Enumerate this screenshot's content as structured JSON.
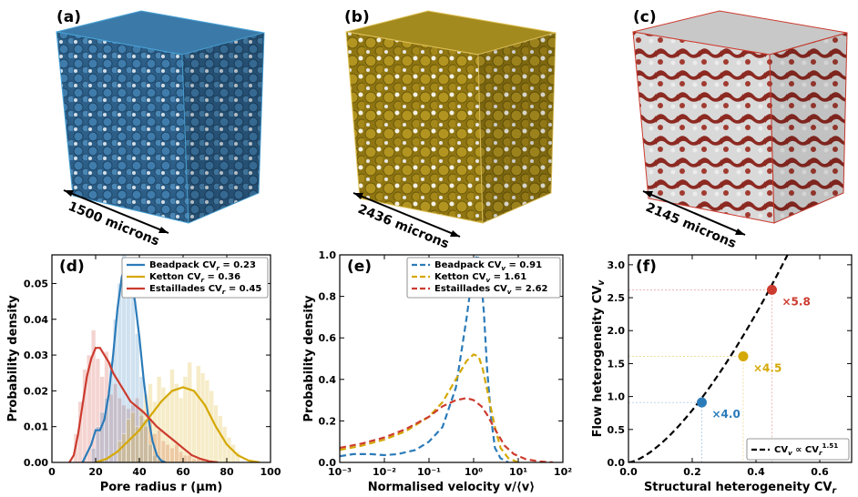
{
  "colors": {
    "blue": "#2b7bb9",
    "gold": "#d4a805",
    "red": "#cc3b2f",
    "tan": "#b08d1a"
  },
  "panels": {
    "a": {
      "letter": "(a)",
      "scale": "1500 microns"
    },
    "b": {
      "letter": "(b)",
      "scale": "2436 microns"
    },
    "c": {
      "letter": "(c)",
      "scale": "2145 microns"
    }
  },
  "chart_data": [
    {
      "id": "d",
      "letter": "(d)",
      "type": "line",
      "xlabel": "Pore radius  r  (μm)",
      "ylabel": "Probability density",
      "xlim": [
        0,
        100
      ],
      "ylim": [
        0,
        0.058
      ],
      "xticks": [
        0,
        20,
        40,
        60,
        80,
        100
      ],
      "yticks": [
        0.0,
        0.01,
        0.02,
        0.03,
        0.04,
        0.05
      ],
      "ytick_labels": [
        "0.00",
        "0.01",
        "0.02",
        "0.03",
        "0.04",
        "0.05"
      ],
      "series": [
        {
          "name": "Beadpack  CVr = 0.23",
          "color": "#2b7bb9",
          "x": [
            14,
            18,
            20,
            22,
            24,
            26,
            28,
            30,
            32,
            34,
            36,
            38,
            40,
            42,
            44,
            46,
            48,
            50,
            52
          ],
          "y": [
            0,
            0.005,
            0.009,
            0.009,
            0.012,
            0.019,
            0.03,
            0.043,
            0.052,
            0.055,
            0.052,
            0.045,
            0.035,
            0.023,
            0.013,
            0.006,
            0.002,
            0.0005,
            0
          ]
        },
        {
          "name": "Ketton  CVr = 0.36",
          "color": "#d4a805",
          "x": [
            20,
            25,
            30,
            35,
            40,
            45,
            50,
            55,
            60,
            65,
            70,
            75,
            80,
            85,
            90,
            95
          ],
          "y": [
            0,
            0.001,
            0.003,
            0.006,
            0.009,
            0.013,
            0.017,
            0.02,
            0.021,
            0.02,
            0.016,
            0.01,
            0.005,
            0.002,
            0.0005,
            0
          ]
        },
        {
          "name": "Estaillades  CVr = 0.45",
          "color": "#cc3b2f",
          "x": [
            8,
            10,
            12,
            14,
            16,
            18,
            20,
            22,
            24,
            26,
            28,
            30,
            32,
            34,
            36,
            38,
            40,
            42,
            45,
            48,
            52,
            56,
            60,
            64,
            68,
            72,
            76
          ],
          "y": [
            0.0,
            0.002,
            0.008,
            0.016,
            0.024,
            0.029,
            0.032,
            0.032,
            0.03,
            0.028,
            0.025,
            0.023,
            0.021,
            0.019,
            0.017,
            0.016,
            0.015,
            0.014,
            0.012,
            0.01,
            0.008,
            0.006,
            0.004,
            0.002,
            0.001,
            0.0003,
            0
          ]
        }
      ],
      "histograms": [
        {
          "color": "#cc3b2f",
          "start": 10,
          "width": 2,
          "values": [
            0.008,
            0.017,
            0.026,
            0.03,
            0.037,
            0.029,
            0.024,
            0.031,
            0.019,
            0.022,
            0.018,
            0.016,
            0.015,
            0.016,
            0.018,
            0.013,
            0.01,
            0.012,
            0.008,
            0.009,
            0.006,
            0.005,
            0.004,
            0.005,
            0.003,
            0.002,
            0.002,
            0.001,
            0.001,
            0.001
          ]
        },
        {
          "color": "#2b7bb9",
          "start": 18,
          "width": 2,
          "values": [
            0.004,
            0.01,
            0.014,
            0.018,
            0.028,
            0.04,
            0.05,
            0.058,
            0.054,
            0.048,
            0.036,
            0.024,
            0.012,
            0.005,
            0.002,
            0.001
          ]
        },
        {
          "color": "#d4a805",
          "start": 30,
          "width": 2,
          "values": [
            0.006,
            0.008,
            0.012,
            0.014,
            0.01,
            0.015,
            0.019,
            0.022,
            0.017,
            0.024,
            0.021,
            0.019,
            0.026,
            0.022,
            0.018,
            0.024,
            0.028,
            0.02,
            0.027,
            0.025,
            0.023,
            0.02,
            0.016,
            0.013,
            0.01,
            0.007,
            0.005,
            0.003
          ]
        }
      ]
    },
    {
      "id": "e",
      "letter": "(e)",
      "type": "line",
      "xlabel": "Normalised velocity  v/⟨v⟩",
      "ylabel": "Probability density",
      "xscale": "log",
      "xlim": [
        0.001,
        100
      ],
      "ylim": [
        0,
        1.0
      ],
      "xticks": [
        0.001,
        0.01,
        0.1,
        1,
        10,
        100
      ],
      "xtick_labels": [
        "10⁻³",
        "10⁻²",
        "10⁻¹",
        "10⁰",
        "10¹",
        "10²"
      ],
      "yticks": [
        0.0,
        0.2,
        0.4,
        0.6,
        0.8,
        1.0
      ],
      "ytick_labels": [
        "0.0",
        "0.2",
        "0.4",
        "0.6",
        "0.8",
        "1.0"
      ],
      "series": [
        {
          "name": "Beadpack  CVv = 0.91",
          "color": "#2b7bb9",
          "x": [
            0.001,
            0.002,
            0.005,
            0.01,
            0.02,
            0.05,
            0.1,
            0.2,
            0.4,
            0.7,
            1.0,
            1.2,
            1.4,
            1.7,
            2.0,
            2.5,
            3.0,
            4.0,
            6.0
          ],
          "y": [
            0.03,
            0.04,
            0.04,
            0.035,
            0.04,
            0.06,
            0.1,
            0.17,
            0.36,
            0.7,
            0.95,
            1.0,
            0.95,
            0.72,
            0.45,
            0.2,
            0.07,
            0.02,
            0
          ]
        },
        {
          "name": "Ketton  CVv = 1.61",
          "color": "#d4a805",
          "x": [
            0.001,
            0.003,
            0.01,
            0.03,
            0.1,
            0.2,
            0.4,
            0.7,
            1.0,
            1.3,
            1.6,
            2.0,
            3.0,
            4.0,
            6.0,
            10
          ],
          "y": [
            0.06,
            0.08,
            0.11,
            0.15,
            0.22,
            0.29,
            0.4,
            0.49,
            0.52,
            0.51,
            0.45,
            0.35,
            0.17,
            0.07,
            0.02,
            0
          ]
        },
        {
          "name": "Estaillades  CVv = 2.62",
          "color": "#cc3b2f",
          "x": [
            0.001,
            0.003,
            0.01,
            0.03,
            0.1,
            0.2,
            0.4,
            0.7,
            1.0,
            1.5,
            2.0,
            3.0,
            5.0,
            8.0,
            15,
            30,
            60
          ],
          "y": [
            0.07,
            0.09,
            0.12,
            0.16,
            0.22,
            0.27,
            0.3,
            0.31,
            0.3,
            0.27,
            0.23,
            0.16,
            0.08,
            0.04,
            0.015,
            0.005,
            0
          ]
        }
      ]
    },
    {
      "id": "f",
      "letter": "(f)",
      "type": "scatter",
      "xlabel": "Structural heterogeneity  CVr",
      "ylabel": "Flow heterogeneity  CVv",
      "xlim": [
        0,
        0.7
      ],
      "ylim": [
        0,
        3.15
      ],
      "xticks": [
        0.0,
        0.2,
        0.4,
        0.6
      ],
      "xtick_labels": [
        "0.0",
        "0.2",
        "0.4",
        "0.6"
      ],
      "yticks": [
        0.0,
        0.5,
        1.0,
        1.5,
        2.0,
        2.5,
        3.0
      ],
      "ytick_labels": [
        "0.0",
        "0.5",
        "1.0",
        "1.5",
        "2.0",
        "2.5",
        "3.0"
      ],
      "points": [
        {
          "x": 0.23,
          "y": 0.91,
          "color": "#2b7bb9",
          "label": "×4.0"
        },
        {
          "x": 0.36,
          "y": 1.61,
          "color": "#d4a805",
          "label": "×4.5"
        },
        {
          "x": 0.45,
          "y": 2.62,
          "color": "#cc3b2f",
          "label": "×5.8"
        }
      ],
      "fit": {
        "name": "CVv ∝ CVr^1.51",
        "coef": 9.0,
        "exponent": 1.51,
        "legend_placement": "bottom-right"
      }
    }
  ]
}
